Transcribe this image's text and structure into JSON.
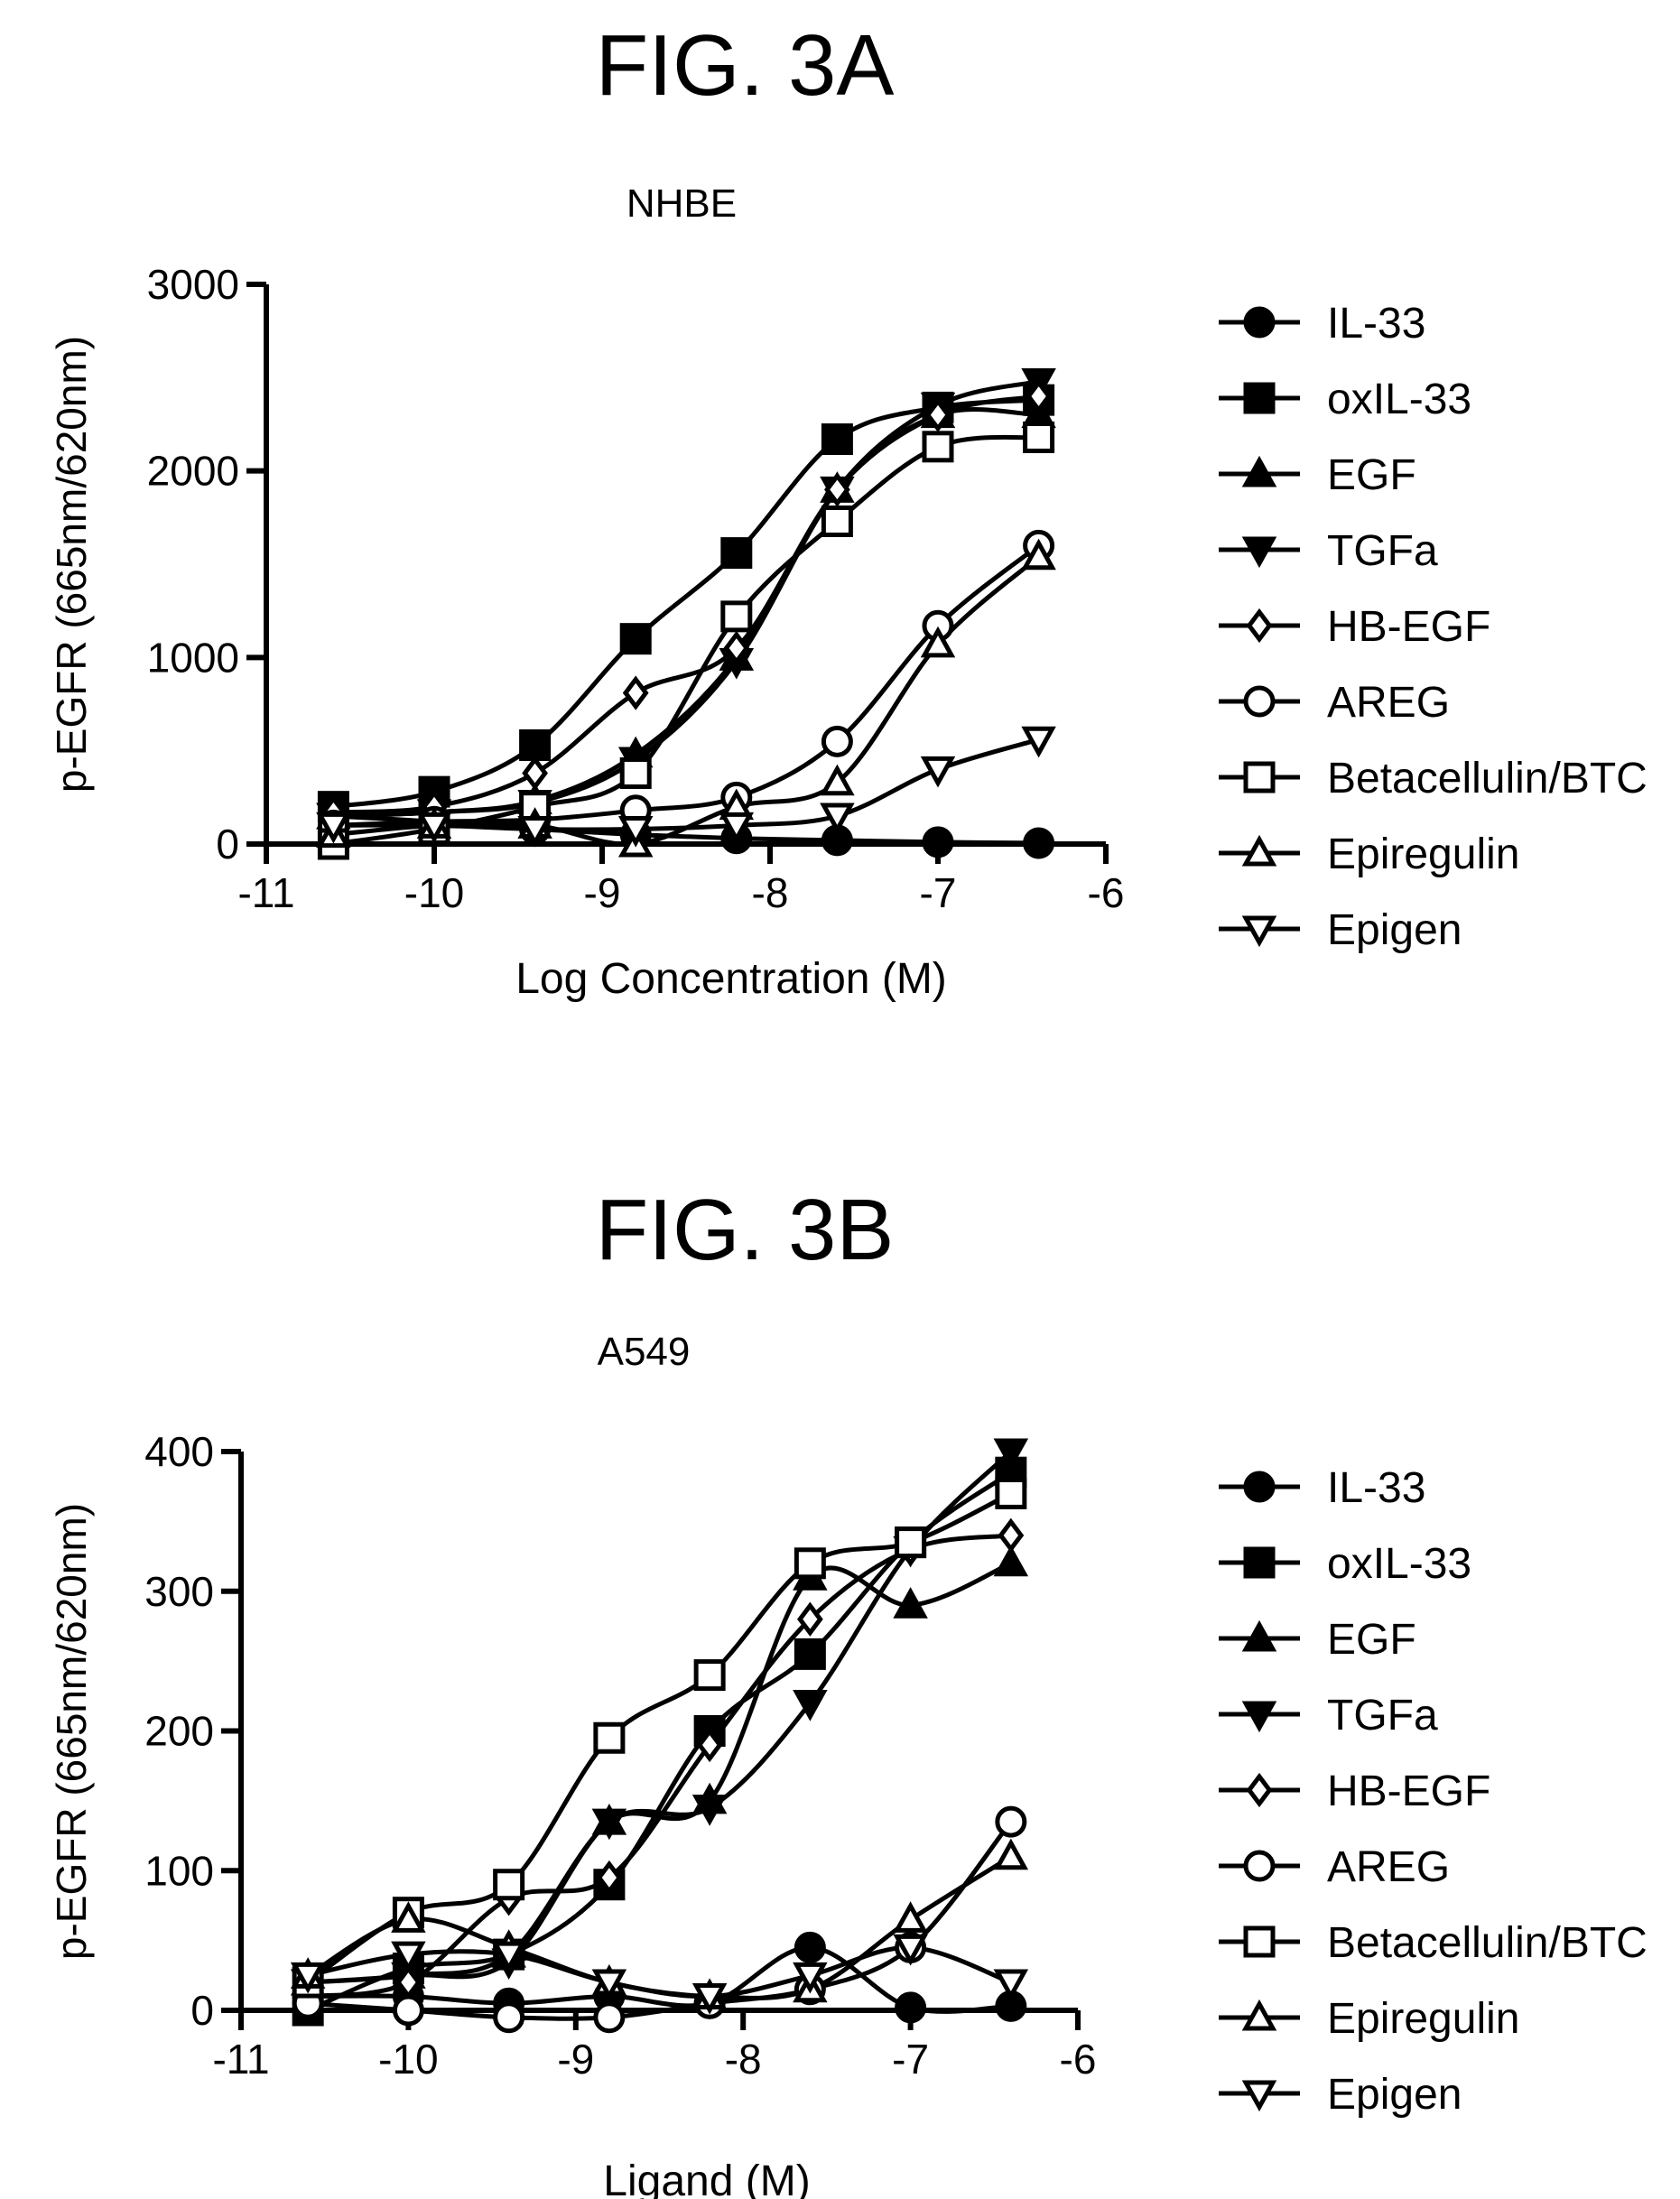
{
  "chart_data": [
    {
      "type": "line",
      "figure_label": "FIG. 3A",
      "title": "NHBE",
      "xlabel": "Log Concentration (M)",
      "ylabel": "p-EGFR (665nm/620nm)",
      "xlim": [
        -11,
        -6
      ],
      "ylim": [
        0,
        3000
      ],
      "xticks": [
        -11,
        -10,
        -9,
        -8,
        -7,
        -6
      ],
      "yticks": [
        0,
        1000,
        2000,
        3000
      ],
      "grid": false,
      "legend_position": "right",
      "x": [
        -10.6,
        -10.0,
        -9.4,
        -8.8,
        -8.2,
        -7.6,
        -7.0,
        -6.4
      ],
      "series": [
        {
          "name": "IL-33",
          "marker": "circle-filled",
          "values": [
            150,
            120,
            80,
            50,
            30,
            20,
            10,
            5
          ]
        },
        {
          "name": "oxIL-33",
          "marker": "square-filled",
          "values": [
            200,
            280,
            530,
            1100,
            1560,
            2170,
            2340,
            2380
          ]
        },
        {
          "name": "EGF",
          "marker": "triangle-up-filled",
          "values": [
            150,
            170,
            230,
            480,
            1000,
            1900,
            2300,
            2300
          ]
        },
        {
          "name": "TGFa",
          "marker": "triangle-down-filled",
          "values": [
            150,
            170,
            220,
            450,
            980,
            1900,
            2350,
            2480
          ]
        },
        {
          "name": "HB-EGF",
          "marker": "diamond-open",
          "values": [
            170,
            200,
            380,
            810,
            1050,
            1900,
            2300,
            2400
          ]
        },
        {
          "name": "AREG",
          "marker": "circle-open",
          "values": [
            100,
            120,
            130,
            180,
            250,
            550,
            1170,
            1600
          ]
        },
        {
          "name": "Betacellulin/BTC",
          "marker": "square-open",
          "values": [
            0,
            80,
            200,
            380,
            1220,
            1730,
            2130,
            2180
          ]
        },
        {
          "name": "Epiregulin",
          "marker": "triangle-up-open",
          "values": [
            50,
            100,
            100,
            0,
            200,
            330,
            1070,
            1540
          ]
        },
        {
          "name": "Epigen",
          "marker": "triangle-down-open",
          "values": [
            100,
            100,
            80,
            80,
            100,
            150,
            400,
            560
          ]
        }
      ]
    },
    {
      "type": "line",
      "figure_label": "FIG. 3B",
      "title": "A549",
      "xlabel": "Ligand (M)",
      "ylabel": "p-EGFR (665nm/620nm)",
      "xlim": [
        -11,
        -6
      ],
      "ylim": [
        0,
        400
      ],
      "xticks": [
        -11,
        -10,
        -9,
        -8,
        -7,
        -6
      ],
      "yticks": [
        0,
        100,
        200,
        300,
        400
      ],
      "grid": false,
      "legend_position": "right",
      "x": [
        -10.6,
        -10.0,
        -9.4,
        -8.8,
        -8.2,
        -7.6,
        -7.0,
        -6.4
      ],
      "series": [
        {
          "name": "IL-33",
          "marker": "circle-filled",
          "values": [
            10,
            10,
            5,
            10,
            5,
            45,
            2,
            3
          ]
        },
        {
          "name": "oxIL-33",
          "marker": "square-filled",
          "values": [
            0,
            30,
            40,
            90,
            200,
            255,
            335,
            385
          ]
        },
        {
          "name": "EGF",
          "marker": "triangle-up-filled",
          "values": [
            20,
            25,
            40,
            135,
            150,
            310,
            290,
            320
          ]
        },
        {
          "name": "TGFa",
          "marker": "triangle-down-filled",
          "values": [
            20,
            25,
            35,
            135,
            145,
            220,
            330,
            400
          ]
        },
        {
          "name": "HB-EGF",
          "marker": "diamond-open",
          "values": [
            10,
            20,
            80,
            95,
            190,
            280,
            330,
            340
          ]
        },
        {
          "name": "AREG",
          "marker": "circle-open",
          "values": [
            5,
            0,
            -5,
            -5,
            5,
            15,
            45,
            135
          ]
        },
        {
          "name": "Betacellulin/BTC",
          "marker": "square-open",
          "values": [
            20,
            70,
            90,
            195,
            240,
            320,
            335,
            370
          ]
        },
        {
          "name": "Epiregulin",
          "marker": "triangle-up-open",
          "values": [
            25,
            65,
            45,
            20,
            10,
            15,
            65,
            110
          ]
        },
        {
          "name": "Epigen",
          "marker": "triangle-down-open",
          "values": [
            25,
            40,
            40,
            20,
            10,
            25,
            45,
            20
          ]
        }
      ]
    }
  ]
}
